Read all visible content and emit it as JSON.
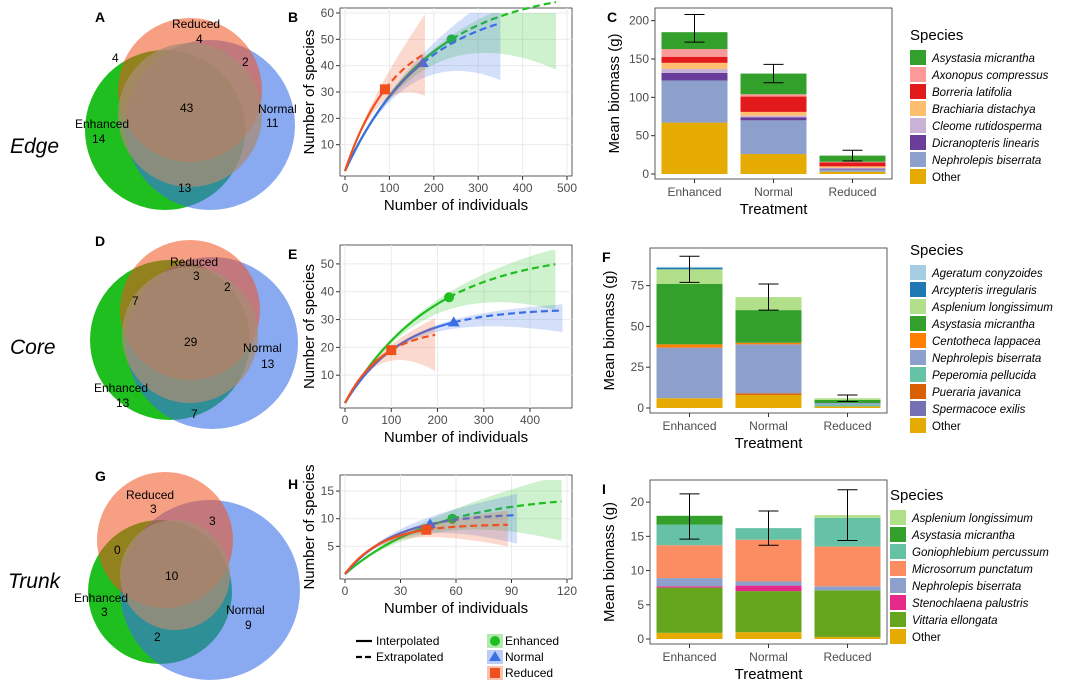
{
  "colors": {
    "enhanced": "#1fbf1f",
    "normal": "#3b6fe6",
    "reduced": "#f0501e",
    "panel_grid": "#ebebeb",
    "axis": "#333333"
  },
  "rows": [
    {
      "label": "Edge",
      "venn": {
        "panel_letter": "A",
        "labels": {
          "enhanced": "Enhanced",
          "normal": "Normal",
          "reduced": "Reduced"
        },
        "counts": {
          "enhanced_only": "14",
          "normal_only": "11",
          "reduced_only": "4",
          "enh_red": "4",
          "red_norm": "2",
          "enh_norm": "13",
          "all": "43"
        }
      },
      "rarefaction": {
        "panel_letter": "B",
        "xlabel": "Number of individuals",
        "ylabel": "Number of species",
        "xlim": [
          0,
          500
        ],
        "ylim": [
          0,
          60
        ],
        "xticks": [
          0,
          100,
          200,
          300,
          400,
          500
        ],
        "yticks": [
          10,
          20,
          30,
          40,
          50,
          60
        ],
        "series": [
          {
            "name": "Enhanced",
            "ref_n": 240,
            "ref_s": 50,
            "max_n": 475,
            "asym_s": 70,
            "ci_lo": 40,
            "ci_hi": 67
          },
          {
            "name": "Normal",
            "ref_n": 175,
            "ref_s": 41,
            "max_n": 350,
            "asym_s": 65,
            "ci_lo": 36,
            "ci_hi": 67
          },
          {
            "name": "Reduced",
            "ref_n": 90,
            "ref_s": 31,
            "max_n": 180,
            "asym_s": 55,
            "ci_lo": 30,
            "ci_hi": 58
          }
        ]
      },
      "biomass": {
        "panel_letter": "C",
        "xlabel": "Treatment",
        "ylabel": "Mean biomass (g)",
        "categories": [
          "Enhanced",
          "Normal",
          "Reduced"
        ],
        "ylim": [
          0,
          210
        ],
        "yticks": [
          0,
          50,
          100,
          150,
          200
        ],
        "legend_title": "Species",
        "species": [
          {
            "name": "Asystasia micrantha",
            "color": "#33a02c"
          },
          {
            "name": "Axonopus compressus",
            "color": "#fb9a99"
          },
          {
            "name": "Borreria latifolia",
            "color": "#e31a1c"
          },
          {
            "name": "Brachiaria distachya",
            "color": "#fdbf6f"
          },
          {
            "name": "Cleome rutidosperma",
            "color": "#cab2d6"
          },
          {
            "name": "Dicranopteris linearis",
            "color": "#6a3d9a"
          },
          {
            "name": "Nephrolepis biserrata",
            "color": "#8da0cb"
          },
          {
            "name": "Other",
            "color": "#e6ab02"
          }
        ],
        "stacks": [
          [
            22,
            10,
            8,
            8,
            5,
            10,
            55,
            67
          ],
          [
            27,
            3,
            20,
            5,
            2,
            4,
            44,
            26
          ],
          [
            8,
            1,
            5,
            2,
            1,
            1,
            3,
            3
          ]
        ],
        "totals": [
          190,
          131,
          24
        ],
        "errors": [
          18,
          12,
          7
        ]
      }
    },
    {
      "label": "Core",
      "venn": {
        "panel_letter": "D",
        "labels": {
          "enhanced": "Enhanced",
          "normal": "Normal",
          "reduced": "Reduced"
        },
        "counts": {
          "enhanced_only": "13",
          "normal_only": "13",
          "reduced_only": "3",
          "enh_red": "7",
          "red_norm": "2",
          "enh_norm": "7",
          "all": "29"
        }
      },
      "rarefaction": {
        "panel_letter": "E",
        "xlabel": "Number of individuals",
        "ylabel": "Number of species",
        "xlim": [
          0,
          480
        ],
        "ylim": [
          0,
          55
        ],
        "xticks": [
          0,
          100,
          200,
          300,
          400
        ],
        "yticks": [
          10,
          20,
          30,
          40,
          50
        ],
        "series": [
          {
            "name": "Enhanced",
            "ref_n": 225,
            "ref_s": 38,
            "max_n": 455,
            "asym_s": 55,
            "ci_lo": 35,
            "ci_hi": 54
          },
          {
            "name": "Normal",
            "ref_n": 235,
            "ref_s": 29,
            "max_n": 470,
            "asym_s": 34,
            "ci_lo": 27,
            "ci_hi": 34
          },
          {
            "name": "Reduced",
            "ref_n": 100,
            "ref_s": 19,
            "max_n": 195,
            "asym_s": 27,
            "ci_lo": 13,
            "ci_hi": 29
          }
        ]
      },
      "biomass": {
        "panel_letter": "F",
        "xlabel": "Treatment",
        "ylabel": "Mean biomass (g)",
        "categories": [
          "Enhanced",
          "Normal",
          "Reduced"
        ],
        "ylim": [
          0,
          95
        ],
        "yticks": [
          0,
          25,
          50,
          75
        ],
        "legend_title": "Species",
        "species": [
          {
            "name": "Ageratum conyzoides",
            "color": "#a6cee3"
          },
          {
            "name": "Arcypteris irregularis",
            "color": "#1f78b4"
          },
          {
            "name": "Asplenium longissimum",
            "color": "#b2df8a"
          },
          {
            "name": "Asystasia micrantha",
            "color": "#33a02c"
          },
          {
            "name": "Centotheca lappacea",
            "color": "#ff7f00"
          },
          {
            "name": "Nephrolepis biserrata",
            "color": "#8da0cb"
          },
          {
            "name": "Peperomia pellucida",
            "color": "#66c2a5"
          },
          {
            "name": "Pueraria javanica",
            "color": "#d95f02"
          },
          {
            "name": "Spermacoce exilis",
            "color": "#7570b3"
          },
          {
            "name": "Other",
            "color": "#e6ab02"
          }
        ],
        "stacks": [
          [
            0.5,
            1,
            9,
            37,
            2,
            31,
            0,
            0,
            0,
            6
          ],
          [
            0,
            0,
            8,
            20,
            1,
            30,
            0,
            1,
            0,
            8
          ],
          [
            0,
            0,
            1,
            2,
            0,
            1,
            1,
            0,
            0,
            1
          ]
        ],
        "totals": [
          85,
          68,
          6
        ],
        "errors": [
          8,
          8,
          2
        ]
      }
    },
    {
      "label": "Trunk",
      "venn": {
        "panel_letter": "G",
        "labels": {
          "enhanced": "Enhanced",
          "normal": "Normal",
          "reduced": "Reduced"
        },
        "counts": {
          "enhanced_only": "3",
          "normal_only": "9",
          "reduced_only": "3",
          "enh_red": "0",
          "red_norm": "3",
          "enh_norm": "2",
          "all": "10"
        }
      },
      "rarefaction": {
        "panel_letter": "H",
        "xlabel": "Number of individuals",
        "ylabel": "Number of species",
        "xlim": [
          0,
          120
        ],
        "ylim": [
          0,
          17
        ],
        "xticks": [
          0,
          30,
          60,
          90,
          120
        ],
        "yticks": [
          5,
          10,
          15
        ],
        "series": [
          {
            "name": "Enhanced",
            "ref_n": 58,
            "ref_s": 10,
            "max_n": 117,
            "asym_s": 14.5,
            "ci_lo": 7.5,
            "ci_hi": 16.5
          },
          {
            "name": "Normal",
            "ref_n": 46,
            "ref_s": 9,
            "max_n": 93,
            "asym_s": 11,
            "ci_lo": 7,
            "ci_hi": 13
          },
          {
            "name": "Reduced",
            "ref_n": 44,
            "ref_s": 8,
            "max_n": 88,
            "asym_s": 9,
            "ci_lo": 6.5,
            "ci_hi": 10
          }
        ]
      },
      "biomass": {
        "panel_letter": "I",
        "xlabel": "Treatment",
        "ylabel": "Mean biomass (g)",
        "categories": [
          "Enhanced",
          "Normal",
          "Reduced"
        ],
        "ylim": [
          0,
          22.5
        ],
        "yticks": [
          0,
          5,
          10,
          15,
          20
        ],
        "legend_title": "Species",
        "species": [
          {
            "name": "Asplenium longissimum",
            "color": "#b2df8a"
          },
          {
            "name": "Asystasia micrantha",
            "color": "#33a02c"
          },
          {
            "name": "Goniophlebium percussum",
            "color": "#66c2a5"
          },
          {
            "name": "Microsorrum punctatum",
            "color": "#fc8d62"
          },
          {
            "name": "Nephrolepis biserrata",
            "color": "#8da0cb"
          },
          {
            "name": "Stenochlaena palustris",
            "color": "#e7298a"
          },
          {
            "name": "Vittaria ellongata",
            "color": "#66a61e"
          },
          {
            "name": "Other",
            "color": "#e6ab02"
          }
        ],
        "stacks": [
          [
            0,
            1.3,
            3.0,
            4.8,
            1.2,
            0.2,
            6.6,
            0.9
          ],
          [
            0,
            0,
            1.7,
            6.1,
            0.6,
            0.8,
            6.0,
            1.0
          ],
          [
            0.4,
            0,
            4.2,
            5.8,
            0.6,
            0,
            6.8,
            0.3
          ]
        ],
        "totals": [
          17.9,
          16.2,
          18.1
        ],
        "errors": [
          3.3,
          2.5,
          3.7
        ]
      }
    }
  ],
  "legend": {
    "interpolated": "Interpolated",
    "extrapolated": "Extrapolated",
    "enhanced": "Enhanced",
    "normal": "Normal",
    "reduced": "Reduced"
  }
}
